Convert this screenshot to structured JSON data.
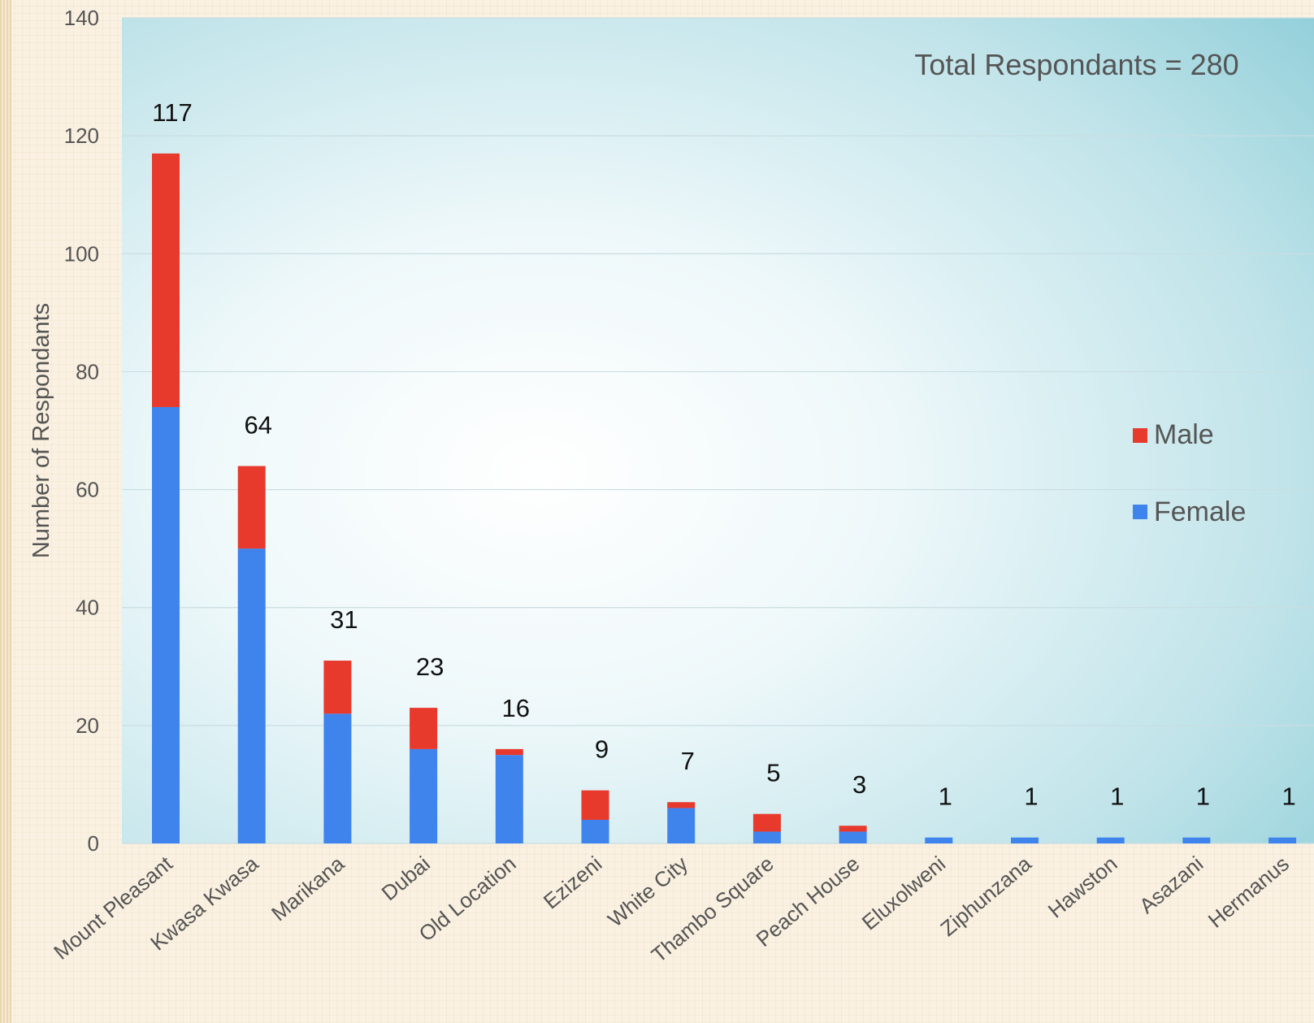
{
  "colors": {
    "male": "#e8392d",
    "female": "#3f83ec",
    "text": "#111111",
    "axis_text": "#555555",
    "annotation_text": "#555555"
  },
  "annotation": "Total Respondants = 280",
  "chart_data": {
    "type": "bar",
    "stacked": true,
    "title": "",
    "xlabel": "",
    "ylabel": "Number of Respondants",
    "ylim": [
      0,
      140
    ],
    "yticks": [
      0,
      20,
      40,
      60,
      80,
      100,
      120,
      140
    ],
    "grid": true,
    "legend_position": "right",
    "categories": [
      "Mount Pleasant",
      "Kwasa Kwasa",
      "Marikana",
      "Dubai",
      "Old Location",
      "Ezizeni",
      "White City",
      "Thambo Square",
      "Peach House",
      "Eluxolweni",
      "Ziphunzana",
      "Hawston",
      "Asazani",
      "Hermanus"
    ],
    "series": [
      {
        "name": "Female",
        "values": [
          74,
          50,
          22,
          16,
          15,
          4,
          6,
          2,
          2,
          1,
          1,
          1,
          1,
          1
        ]
      },
      {
        "name": "Male",
        "values": [
          43,
          14,
          9,
          7,
          1,
          5,
          1,
          3,
          1,
          0,
          0,
          0,
          0,
          0
        ]
      }
    ],
    "totals": [
      117,
      64,
      31,
      23,
      16,
      9,
      7,
      5,
      3,
      1,
      1,
      1,
      1,
      1
    ],
    "legend": [
      "Male",
      "Female"
    ]
  }
}
